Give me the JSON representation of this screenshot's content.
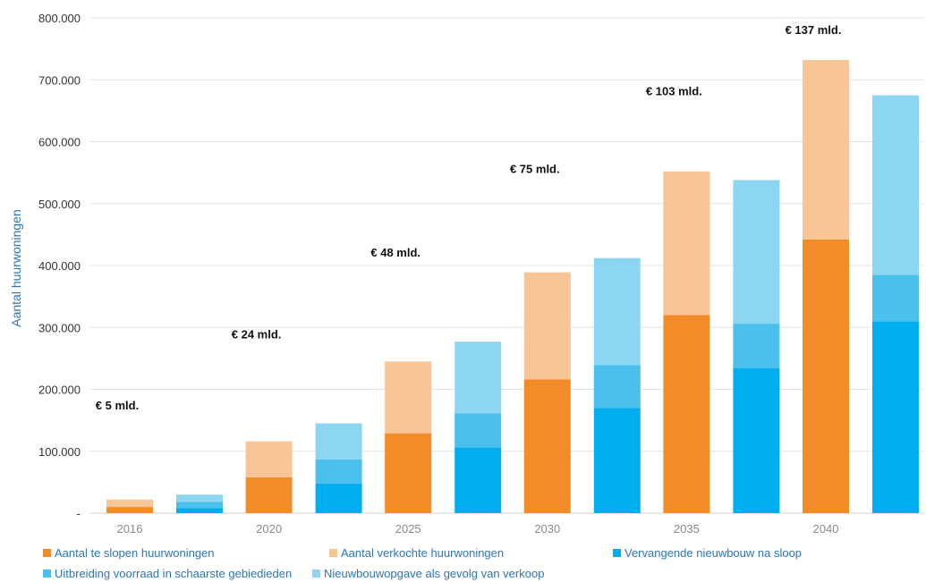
{
  "chart_data": {
    "type": "bar",
    "stacked": true,
    "ylabel": "Aantal huurwoningen",
    "xlabel": "",
    "ylim": [
      0,
      800000
    ],
    "y_ticks": [
      0,
      100000,
      200000,
      300000,
      400000,
      500000,
      600000,
      700000,
      800000
    ],
    "y_tick_labels": [
      "-",
      "100.000",
      "200.000",
      "300.000",
      "400.000",
      "500.000",
      "600.000",
      "700.000",
      "800.000"
    ],
    "x_tick_labels": [
      "2016",
      "2020",
      "2025",
      "2030",
      "2035",
      "2040"
    ],
    "grid": true,
    "legend_position": "bottom",
    "groups": [
      {
        "x_label": "2016",
        "annotation": "€ 5 mld.",
        "demolish_sell": [
          10000,
          12000
        ],
        "build": [
          8000,
          10000,
          12000
        ]
      },
      {
        "x_label": "2020",
        "annotation": "€ 24 mld.",
        "demolish_sell": [
          58000,
          58000
        ],
        "build": [
          48000,
          39000,
          58000
        ]
      },
      {
        "x_label": "2025",
        "annotation": "€ 48 mld.",
        "demolish_sell": [
          129000,
          116000
        ],
        "build": [
          106000,
          55000,
          116000
        ]
      },
      {
        "x_label": "2030",
        "annotation": "€ 75 mld.",
        "demolish_sell": [
          216000,
          173000
        ],
        "build": [
          170000,
          69000,
          173000
        ]
      },
      {
        "x_label": "2035",
        "annotation": "€ 103 mld.",
        "demolish_sell": [
          320000,
          232000
        ],
        "build": [
          234000,
          72000,
          232000
        ]
      },
      {
        "x_label": "2040",
        "annotation": "€ 137 mld.",
        "demolish_sell": [
          442000,
          290000
        ],
        "build": [
          310000,
          75000,
          290000
        ]
      }
    ],
    "series": [
      {
        "name": "Aantal te slopen huurwoningen",
        "color": "#f28c28",
        "stack": "demolish_sell"
      },
      {
        "name": "Aantal verkochte huurwoningen",
        "color": "#f9c597",
        "stack": "demolish_sell"
      },
      {
        "name": "Vervangende nieuwbouw na sloop",
        "color": "#00aeef",
        "stack": "build"
      },
      {
        "name": "Uitbreiding voorraad in schaarste gebiedieden",
        "color": "#4bc0ec",
        "stack": "build"
      },
      {
        "name": "Nieuwbouwopgave als gevolg van verkoop",
        "color": "#8dd6f2",
        "stack": "build"
      }
    ]
  }
}
